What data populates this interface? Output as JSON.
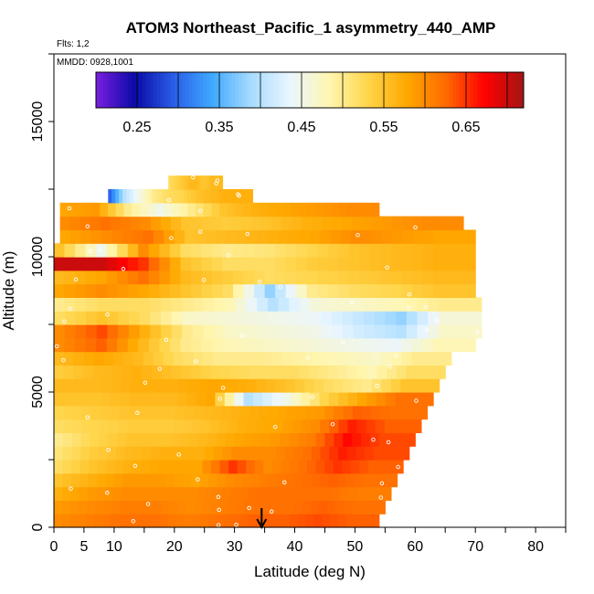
{
  "chart_data": {
    "type": "heatmap",
    "title": "ATOM3 Northeast_Pacific_1 asymmetry_440_AMP",
    "flights_note": "Flts: 1,2",
    "date_note": "MMDD: 0928,1001",
    "xlabel": "Latitude (deg N)",
    "ylabel": "Altitude (m)",
    "xlim": [
      0,
      85
    ],
    "ylim": [
      0,
      17500
    ],
    "x_tick_labels": [
      "0",
      "5",
      "10",
      "20",
      "30",
      "40",
      "50",
      "60",
      "70",
      "80"
    ],
    "x_tick_values": [
      0,
      5,
      10,
      20,
      30,
      40,
      50,
      60,
      70,
      80
    ],
    "y_tick_labels": [
      "0",
      "5000",
      "10000",
      "15000"
    ],
    "y_tick_values": [
      0,
      5000,
      10000,
      15000
    ],
    "colorbar": {
      "range": [
        0.2,
        0.72
      ],
      "tick_labels": [
        "0.25",
        "0.35",
        "0.45",
        "0.55",
        "0.65"
      ],
      "tick_values": [
        0.25,
        0.35,
        0.45,
        0.55,
        0.65
      ],
      "colors": [
        "#7b1fe0",
        "#0a0aa6",
        "#2a5ee8",
        "#3fa9ff",
        "#a8dcff",
        "#eaf6ff",
        "#fff6b0",
        "#ffd54a",
        "#ffa800",
        "#ff6a00",
        "#ff0000",
        "#a31515"
      ]
    },
    "marker": {
      "latitude": 34.5,
      "label": "arrow"
    },
    "envelope": [
      [
        0,
        12000,
        12000
      ],
      [
        1,
        11900,
        11900
      ],
      [
        2,
        11900,
        11900
      ],
      [
        3,
        11900,
        11900
      ]
    ],
    "rows": [
      {
        "alt": 250,
        "x0": 0,
        "x1": 54,
        "values": [
          0.6,
          0.61,
          0.62,
          0.62,
          0.61,
          0.62,
          0.63,
          0.63,
          0.64,
          0.63
        ]
      },
      {
        "alt": 750,
        "x0": 0,
        "x1": 55,
        "values": [
          0.59,
          0.6,
          0.61,
          0.61,
          0.6,
          0.61,
          0.62,
          0.62,
          0.63,
          0.62
        ]
      },
      {
        "alt": 1250,
        "x0": 0,
        "x1": 56,
        "values": [
          0.57,
          0.59,
          0.6,
          0.6,
          0.6,
          0.61,
          0.62,
          0.62,
          0.62,
          0.61
        ]
      },
      {
        "alt": 1750,
        "x0": 0,
        "x1": 57,
        "values": [
          0.55,
          0.57,
          0.59,
          0.59,
          0.58,
          0.6,
          0.61,
          0.62,
          0.63,
          0.62
        ]
      },
      {
        "alt": 2250,
        "x0": 0,
        "x1": 58,
        "values": [
          0.52,
          0.55,
          0.57,
          0.58,
          0.58,
          0.65,
          0.6,
          0.62,
          0.65,
          0.63
        ]
      },
      {
        "alt": 2750,
        "x0": 0,
        "x1": 59,
        "values": [
          0.51,
          0.54,
          0.56,
          0.57,
          0.57,
          0.6,
          0.6,
          0.62,
          0.66,
          0.64
        ]
      },
      {
        "alt": 3250,
        "x0": 0,
        "x1": 60,
        "values": [
          0.5,
          0.53,
          0.55,
          0.55,
          0.56,
          0.58,
          0.59,
          0.61,
          0.67,
          0.64
        ]
      },
      {
        "alt": 3750,
        "x0": 0,
        "x1": 61,
        "values": [
          0.52,
          0.53,
          0.54,
          0.54,
          0.55,
          0.57,
          0.58,
          0.6,
          0.66,
          0.63
        ]
      },
      {
        "alt": 4250,
        "x0": 0,
        "x1": 62,
        "values": [
          0.53,
          0.54,
          0.55,
          0.55,
          0.56,
          0.57,
          0.58,
          0.59,
          0.63,
          0.62
        ]
      },
      {
        "alt": 4750,
        "x0": 0,
        "x1": 63,
        "values": [
          0.55,
          0.55,
          0.56,
          0.56,
          0.58,
          0.4,
          0.45,
          0.53,
          0.58,
          0.62
        ]
      },
      {
        "alt": 5250,
        "x0": 0,
        "x1": 64,
        "values": [
          0.56,
          0.56,
          0.57,
          0.57,
          0.58,
          0.57,
          0.55,
          0.52,
          0.5,
          0.55
        ]
      },
      {
        "alt": 5750,
        "x0": 0,
        "x1": 65,
        "values": [
          0.54,
          0.56,
          0.57,
          0.55,
          0.53,
          0.52,
          0.52,
          0.5,
          0.48,
          0.52
        ]
      },
      {
        "alt": 6250,
        "x0": 0,
        "x1": 66,
        "values": [
          0.56,
          0.58,
          0.56,
          0.52,
          0.5,
          0.5,
          0.49,
          0.48,
          0.47,
          0.5
        ]
      },
      {
        "alt": 6750,
        "x0": 0,
        "x1": 70,
        "values": [
          0.6,
          0.63,
          0.56,
          0.5,
          0.48,
          0.47,
          0.46,
          0.45,
          0.44,
          0.48
        ]
      },
      {
        "alt": 7250,
        "x0": 0,
        "x1": 71,
        "values": [
          0.6,
          0.64,
          0.57,
          0.5,
          0.47,
          0.46,
          0.45,
          0.42,
          0.4,
          0.47
        ]
      },
      {
        "alt": 7750,
        "x0": 0,
        "x1": 71,
        "values": [
          0.52,
          0.55,
          0.52,
          0.47,
          0.46,
          0.45,
          0.44,
          0.41,
          0.38,
          0.46
        ]
      },
      {
        "alt": 8250,
        "x0": 0,
        "x1": 71,
        "values": [
          0.5,
          0.52,
          0.52,
          0.5,
          0.48,
          0.4,
          0.46,
          0.47,
          0.48,
          0.5
        ]
      },
      {
        "alt": 8750,
        "x0": 0,
        "x1": 70,
        "values": [
          0.58,
          0.6,
          0.58,
          0.55,
          0.52,
          0.38,
          0.5,
          0.52,
          0.53,
          0.55
        ]
      },
      {
        "alt": 9250,
        "x0": 0,
        "x1": 70,
        "values": [
          0.56,
          0.58,
          0.62,
          0.56,
          0.54,
          0.52,
          0.53,
          0.54,
          0.55,
          0.56
        ]
      },
      {
        "alt": 9750,
        "x0": 0,
        "x1": 70,
        "values": [
          0.7,
          0.7,
          0.65,
          0.55,
          0.52,
          0.52,
          0.54,
          0.55,
          0.56,
          0.57
        ]
      },
      {
        "alt": 10250,
        "x0": 0,
        "x1": 70,
        "values": [
          0.55,
          0.45,
          0.6,
          0.52,
          0.5,
          0.51,
          0.53,
          0.55,
          0.56,
          0.57
        ]
      },
      {
        "alt": 10750,
        "x0": 1,
        "x1": 70,
        "values": [
          0.58,
          0.6,
          0.62,
          0.55,
          0.56,
          0.57,
          0.58,
          0.6,
          0.59,
          0.58
        ]
      },
      {
        "alt": 11250,
        "x0": 1,
        "x1": 68,
        "values": [
          0.6,
          0.62,
          0.6,
          0.55,
          0.54,
          0.55,
          0.57,
          0.58,
          0.59,
          0.6
        ]
      },
      {
        "alt": 11750,
        "x0": 1,
        "x1": 54,
        "values": [
          0.58,
          0.59,
          0.5,
          0.45,
          0.5,
          0.55,
          0.57,
          0.58,
          0.59,
          0.6
        ]
      },
      {
        "alt": 12250,
        "x0": 9,
        "x1": 33,
        "values": [
          0.3,
          0.4,
          0.45,
          0.5,
          0.52,
          0.53,
          0.55,
          0.56,
          0.57,
          0.57
        ]
      },
      {
        "alt": 12750,
        "x0": 19,
        "x1": 28,
        "values": [
          0.52,
          0.53,
          0.54,
          0.55,
          0.56,
          0.56,
          0.55,
          0.55,
          0.56,
          0.56
        ]
      }
    ]
  }
}
